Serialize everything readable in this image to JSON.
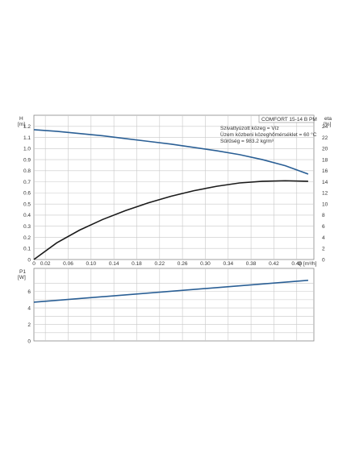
{
  "chart_data": [
    {
      "type": "line",
      "title": "COMFORT  15-14 B PM",
      "info_lines": [
        "Szivattyúzott közeg = Víz",
        "Üzem közbeni közeghőmérséklet = 60 °C",
        "Sűrűség = 983.2 kg/m³"
      ],
      "ylabel": "H",
      "ylabel_unit": "[m]",
      "y2label": "eta",
      "y2label_unit": "[%]",
      "xlabel": "Q [m³/h]",
      "xlim": [
        0,
        0.49
      ],
      "ylim": [
        0,
        1.3
      ],
      "y2lim": [
        0,
        26
      ],
      "x_ticks": [
        "0",
        "0.02",
        "0.06",
        "0.10",
        "0.14",
        "0.18",
        "0.22",
        "0.26",
        "0.30",
        "0.34",
        "0.38",
        "0.42",
        "0.46"
      ],
      "y_ticks": [
        "0",
        "0.1",
        "0.2",
        "0.3",
        "0.4",
        "0.5",
        "0.6",
        "0.7",
        "0.8",
        "0.9",
        "1.0",
        "1.1",
        "1.2"
      ],
      "y2_ticks": [
        "0",
        "2",
        "4",
        "6",
        "8",
        "10",
        "12",
        "14",
        "16",
        "18",
        "20",
        "22",
        "24"
      ],
      "grid": true,
      "colors": {
        "H": "#2a5f95",
        "eta": "#1a1a1a"
      },
      "series": [
        {
          "axis": "left",
          "x": [
            0,
            0.04,
            0.08,
            0.12,
            0.16,
            0.2,
            0.24,
            0.28,
            0.32,
            0.36,
            0.4,
            0.44,
            0.48
          ],
          "values": [
            1.17,
            1.155,
            1.135,
            1.115,
            1.09,
            1.065,
            1.04,
            1.01,
            0.98,
            0.945,
            0.9,
            0.845,
            0.77
          ]
        },
        {
          "axis": "right",
          "x": [
            0,
            0.04,
            0.08,
            0.12,
            0.16,
            0.2,
            0.24,
            0.28,
            0.32,
            0.36,
            0.4,
            0.44,
            0.48
          ],
          "values": [
            0,
            3.0,
            5.3,
            7.2,
            8.8,
            10.2,
            11.4,
            12.4,
            13.2,
            13.8,
            14.1,
            14.2,
            14.1
          ]
        }
      ]
    },
    {
      "type": "line",
      "ylabel": "P1",
      "ylabel_unit": "[W]",
      "xlim": [
        0,
        0.49
      ],
      "ylim": [
        0,
        8.8
      ],
      "y_ticks": [
        "0",
        "2",
        "4",
        "6"
      ],
      "grid": true,
      "colors": {
        "P1": "#2a5f95"
      },
      "series": [
        {
          "x": [
            0,
            0.48
          ],
          "values": [
            4.7,
            7.35
          ]
        }
      ]
    }
  ]
}
